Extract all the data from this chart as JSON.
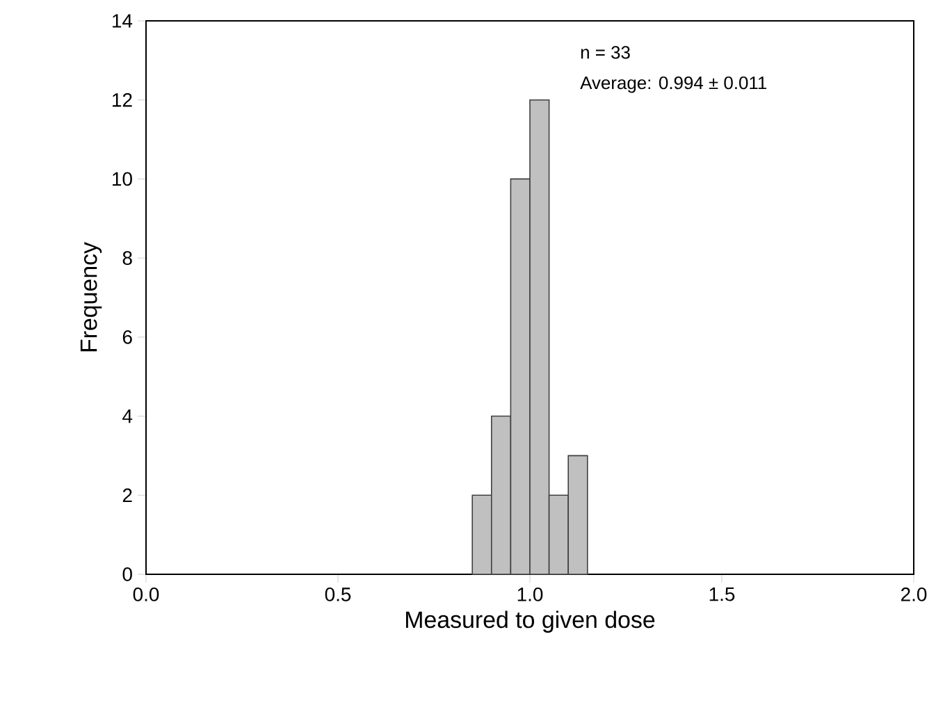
{
  "chart_data": {
    "type": "histogram",
    "xlabel": "Measured to given dose",
    "ylabel": "Frequency",
    "bins": [
      0.85,
      0.9,
      0.95,
      1.0,
      1.05,
      1.1,
      1.15
    ],
    "values": [
      2,
      4,
      10,
      12,
      2,
      3
    ],
    "color": "#c0c0c0",
    "xlim": [
      0,
      2
    ],
    "ylim": [
      0,
      14
    ],
    "xticks": [
      {
        "value": 0,
        "label": "0.0"
      },
      {
        "value": 0.5,
        "label": "0.5"
      },
      {
        "value": 1,
        "label": "1.0"
      },
      {
        "value": 1.5,
        "label": "1.5"
      },
      {
        "value": 2,
        "label": "2.0"
      }
    ],
    "yticks": [
      0,
      2,
      4,
      6,
      8,
      10,
      12,
      14
    ],
    "annotations": [
      "n = 33",
      "Average: 0.994 ± 0.011"
    ]
  }
}
